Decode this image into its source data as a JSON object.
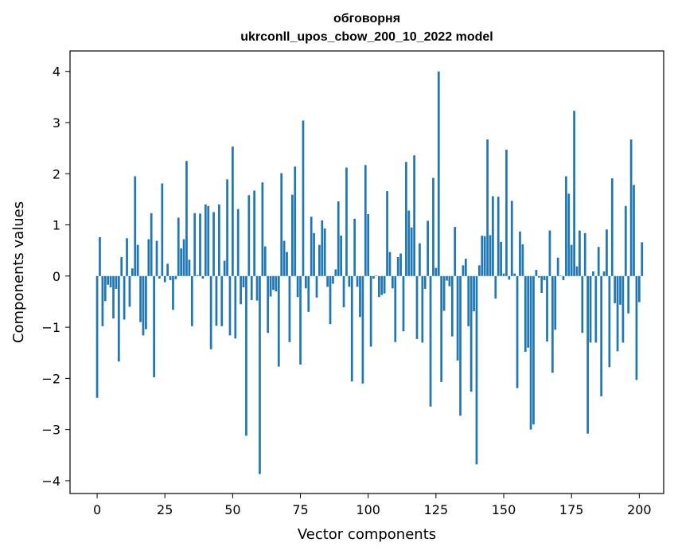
{
  "chart_data": {
    "type": "bar",
    "title": "обговорня",
    "subtitle": "ukrconll_upos_cbow_200_10_2022 model",
    "xlabel": "Vector components",
    "ylabel": "Components values",
    "xlim": [
      -10,
      209
    ],
    "ylim": [
      -4.25,
      4.4
    ],
    "xticks": [
      0,
      25,
      50,
      75,
      100,
      125,
      150,
      175,
      200
    ],
    "yticks": [
      -4,
      -3,
      -2,
      -1,
      0,
      1,
      2,
      3,
      4
    ],
    "bar_color": "#1f77b4",
    "grid": false,
    "legend": "none",
    "values": [
      -2.38,
      0.76,
      -0.98,
      -0.49,
      -0.17,
      -0.22,
      -0.83,
      -0.25,
      -1.67,
      0.37,
      -0.85,
      0.74,
      -0.6,
      0.15,
      1.95,
      0.61,
      -0.9,
      -1.16,
      -1.04,
      0.72,
      1.23,
      -1.98,
      0.69,
      -0.05,
      1.81,
      -0.12,
      0.24,
      -0.08,
      -0.66,
      -0.06,
      1.14,
      0.54,
      0.72,
      2.25,
      0.32,
      -0.98,
      1.23,
      0.02,
      1.22,
      -0.05,
      1.4,
      1.37,
      -1.43,
      1.25,
      -0.97,
      1.4,
      -0.98,
      0.3,
      1.89,
      -1.16,
      2.53,
      -1.22,
      1.31,
      -0.55,
      -0.22,
      -3.12,
      1.58,
      -0.47,
      1.67,
      -0.48,
      -3.87,
      1.83,
      0.58,
      -1.11,
      -0.4,
      -0.27,
      -0.3,
      -1.77,
      2.01,
      0.69,
      0.47,
      -1.29,
      1.59,
      2.14,
      -0.41,
      -1.73,
      3.04,
      -0.24,
      -0.7,
      1.16,
      0.84,
      -0.42,
      0.61,
      1.09,
      0.93,
      -0.21,
      -0.94,
      -0.15,
      0.13,
      1.46,
      0.79,
      -0.61,
      2.12,
      -0.21,
      -2.06,
      1.12,
      -0.21,
      -0.8,
      -2.1,
      2.17,
      1.21,
      -1.38,
      -0.05,
      0.01,
      -0.41,
      -0.37,
      -0.34,
      1.66,
      0.47,
      -0.24,
      -1.29,
      0.37,
      0.44,
      -1.08,
      2.23,
      1.28,
      0.95,
      2.36,
      -1.23,
      0.64,
      -1.3,
      -0.25,
      1.08,
      -2.55,
      1.92,
      0.16,
      4.0,
      -2.07,
      -0.68,
      -0.09,
      -0.2,
      -1.18,
      0.96,
      -1.65,
      -2.73,
      0.21,
      0.34,
      -0.98,
      -2.26,
      -0.69,
      -3.68,
      0.21,
      0.79,
      0.78,
      2.67,
      0.8,
      1.56,
      -0.44,
      1.55,
      0.67,
      0.05,
      2.47,
      -0.07,
      1.47,
      0.05,
      -2.19,
      0.87,
      0.62,
      -1.48,
      -1.4,
      -3.0,
      -2.9,
      0.12,
      -0.03,
      -0.33,
      -0.08,
      -1.28,
      0.89,
      -1.89,
      -1.05,
      0.36,
      0.01,
      -0.08,
      1.95,
      1.61,
      0.61,
      3.23,
      0.19,
      0.89,
      -1.11,
      0.84,
      -3.08,
      -1.3,
      0.09,
      -1.3,
      0.57,
      -2.35,
      0.09,
      0.91,
      -1.78,
      1.91,
      -0.53,
      -1.47,
      -0.56,
      -1.3,
      1.37,
      -0.73,
      2.67,
      1.78,
      -2.03,
      -0.51,
      0.66
    ]
  }
}
